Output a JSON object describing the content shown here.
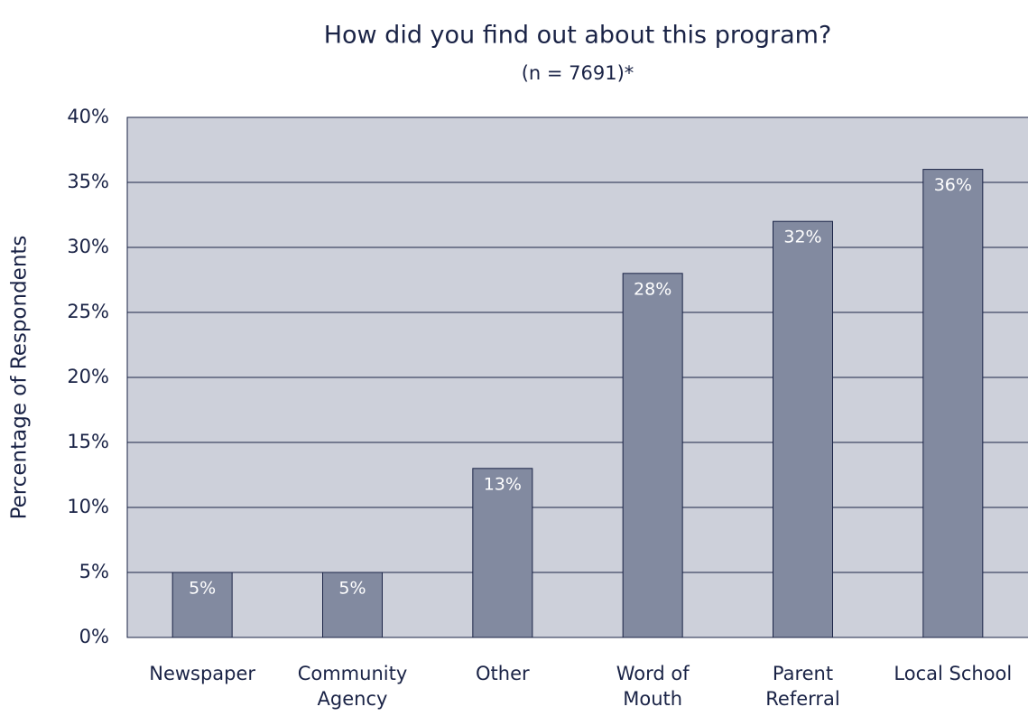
{
  "chart_data": {
    "type": "bar",
    "title": "How did you find out about this program?",
    "subtitle": "(n = 7691)*",
    "y_label": "Percentage of Respondents",
    "categories": [
      "Newspaper",
      "Community Agency",
      "Other",
      "Word of Mouth",
      "Parent Referral",
      "Local School"
    ],
    "values": [
      5,
      5,
      13,
      28,
      32,
      36
    ],
    "value_labels": [
      "5%",
      "5%",
      "13%",
      "28%",
      "32%",
      "36%"
    ],
    "color": "#828aa0",
    "ylim": [
      0,
      40
    ],
    "yticks": [
      {
        "value": 0,
        "label": "0%"
      },
      {
        "value": 5,
        "label": "5%"
      },
      {
        "value": 10,
        "label": "10%"
      },
      {
        "value": 15,
        "label": "15%"
      },
      {
        "value": 20,
        "label": "20%"
      },
      {
        "value": 25,
        "label": "25%"
      },
      {
        "value": 30,
        "label": "30%"
      },
      {
        "value": 35,
        "label": "35%"
      },
      {
        "value": 40,
        "label": "40%"
      }
    ],
    "grid": true
  }
}
